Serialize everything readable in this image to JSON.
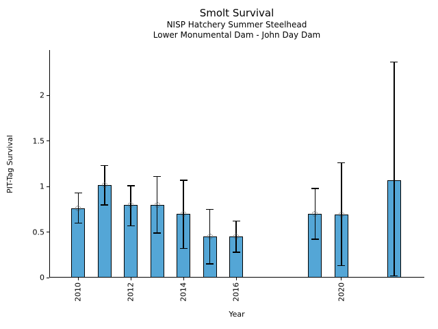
{
  "header": {
    "title": "Smolt Survival",
    "subtitle1": "NISP Hatchery Summer Steelhead",
    "subtitle2": "Lower Monumental Dam - John Day Dam"
  },
  "chart_data": {
    "type": "bar",
    "title": "Smolt Survival",
    "subtitle_lines": [
      "NISP Hatchery Summer Steelhead",
      "Lower Monumental Dam - John Day Dam"
    ],
    "xlabel": "Year",
    "ylabel": "PIT-Tag Survival",
    "x": [
      2010,
      2011,
      2012,
      2013,
      2014,
      2015,
      2016,
      2019,
      2020,
      2022
    ],
    "values": [
      0.76,
      1.02,
      0.8,
      0.8,
      0.7,
      0.45,
      0.45,
      0.7,
      0.69,
      1.07
    ],
    "error_low": [
      0.6,
      0.8,
      0.57,
      0.49,
      0.32,
      0.15,
      0.28,
      0.42,
      0.13,
      0.02
    ],
    "error_high": [
      0.93,
      1.23,
      1.01,
      1.11,
      1.07,
      0.75,
      0.62,
      0.98,
      1.26,
      2.37
    ],
    "marker_at_bar_top": [
      true,
      true,
      true,
      true,
      true,
      true,
      true,
      true,
      true,
      false
    ],
    "xlim": [
      2008.9,
      2023.15
    ],
    "ylim": [
      0,
      2.5
    ],
    "xticks": [
      2010,
      2012,
      2014,
      2016,
      2020
    ],
    "xtick_labels": [
      "2010",
      "2012",
      "2014",
      "2016",
      "2020"
    ],
    "xtick_rotation_deg": 90,
    "yticks": [
      0,
      0.5,
      1,
      1.5,
      2
    ],
    "ytick_labels": [
      "0",
      "0.5",
      "1",
      "1.5",
      "2"
    ],
    "grid": false,
    "legend": null,
    "bar_width_years": 0.52,
    "colors": {
      "bar_fill": "#54a6d6",
      "bar_edge": "#000000",
      "error_bar": "#000000",
      "marker_edge": "#4a4a4a",
      "axis": "#000000",
      "text": "#000000",
      "background": "#ffffff"
    }
  }
}
